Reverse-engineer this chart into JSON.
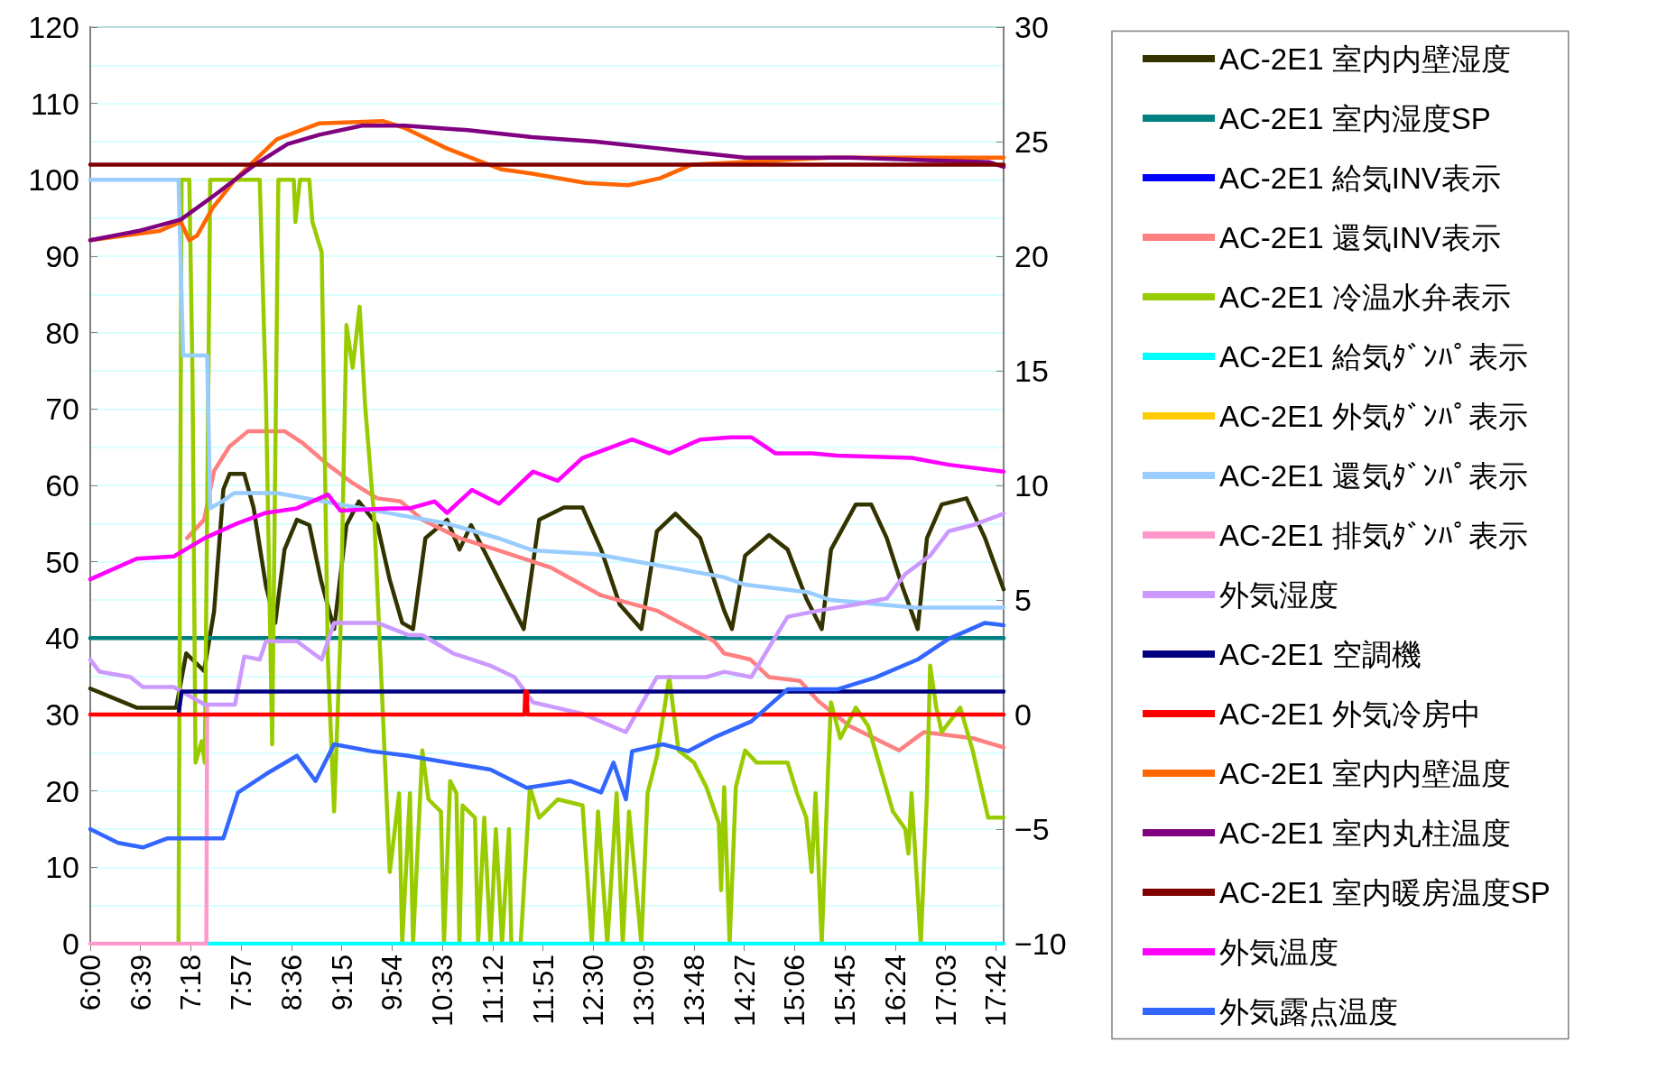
{
  "chart_data": {
    "type": "line",
    "legend": "right",
    "grid": "y",
    "marker": "none",
    "line_style": "solid",
    "xlim": [
      6,
      17.8
    ],
    "xticks": [
      {
        "value": 6,
        "label": "6:00"
      },
      {
        "value": 6.65,
        "label": "6:39"
      },
      {
        "value": 7.3,
        "label": "7:18"
      },
      {
        "value": 7.95,
        "label": "7:57"
      },
      {
        "value": 8.6,
        "label": "8:36"
      },
      {
        "value": 9.25,
        "label": "9:15"
      },
      {
        "value": 9.9,
        "label": "9:54"
      },
      {
        "value": 10.55,
        "label": "10:33"
      },
      {
        "value": 11.2,
        "label": "11:12"
      },
      {
        "value": 11.85,
        "label": "11:51"
      },
      {
        "value": 12.5,
        "label": "12:30"
      },
      {
        "value": 13.15,
        "label": "13:09"
      },
      {
        "value": 13.8,
        "label": "13:48"
      },
      {
        "value": 14.45,
        "label": "14:27"
      },
      {
        "value": 15.1,
        "label": "15:06"
      },
      {
        "value": 15.75,
        "label": "15:45"
      },
      {
        "value": 16.4,
        "label": "16:24"
      },
      {
        "value": 17.05,
        "label": "17:03"
      },
      {
        "value": 17.7,
        "label": "17:42"
      }
    ],
    "ylim": [
      0,
      120
    ],
    "yticks": [
      0,
      10,
      20,
      30,
      40,
      50,
      60,
      70,
      80,
      90,
      100,
      110,
      120
    ],
    "y2lim": [
      -10,
      30
    ],
    "y2ticks": [
      {
        "value": -10,
        "label": "−10"
      },
      {
        "value": -5,
        "label": "−5"
      },
      0,
      5,
      10,
      15,
      20,
      25,
      30
    ],
    "series": [
      {
        "name": "AC-2E1 室内内壁湿度",
        "color": "#333300",
        "x": [
          6.0,
          6.6,
          7.11,
          7.24,
          7.47,
          7.6,
          7.72,
          7.8,
          7.99,
          8.11,
          8.27,
          8.39,
          8.51,
          8.67,
          8.83,
          8.98,
          9.15,
          9.31,
          9.47,
          9.71,
          9.87,
          10.03,
          10.17,
          10.33,
          10.61,
          10.77,
          10.92,
          11.24,
          11.6,
          11.8,
          12.12,
          12.36,
          12.6,
          12.84,
          13.12,
          13.32,
          13.56,
          13.88,
          14.19,
          14.29,
          14.46,
          14.77,
          15.01,
          15.25,
          15.45,
          15.57,
          15.89,
          16.09,
          16.29,
          16.49,
          16.69,
          16.81,
          17.0,
          17.32,
          17.56,
          17.8
        ],
        "values": [
          33.4,
          30.9,
          30.9,
          38,
          35.7,
          43.5,
          59.5,
          61.5,
          61.5,
          57.1,
          46.8,
          42,
          51.6,
          55.5,
          54.8,
          47.6,
          41.2,
          54.8,
          57.9,
          54.8,
          47.6,
          42,
          41.2,
          53.1,
          55.5,
          51.6,
          54.8,
          48.4,
          41.2,
          55.5,
          57.1,
          57.1,
          51.6,
          44.4,
          41.2,
          54,
          56.3,
          53.1,
          43.6,
          41.2,
          50.8,
          53.5,
          51.6,
          45.2,
          41.2,
          51.6,
          57.5,
          57.5,
          53.1,
          46.8,
          41.2,
          53.1,
          57.5,
          58.3,
          53.1,
          46.4
        ]
      },
      {
        "name": "AC-2E1 室内湿度SP",
        "color": "#008080",
        "x": [
          6,
          17.8
        ],
        "values": [
          40,
          40
        ]
      },
      {
        "name": "AC-2E1 給気INV表示",
        "color": "#0000ff"
      },
      {
        "name": "AC-2E1 還気INV表示",
        "color": "#ff8080",
        "x": [
          7.25,
          7.47,
          7.6,
          7.8,
          8.04,
          8.51,
          8.75,
          9.07,
          9.39,
          9.71,
          10.01,
          10.29,
          10.77,
          11.24,
          11.96,
          12.6,
          13.32,
          14.06,
          14.19,
          14.53,
          14.77,
          15.17,
          15.41,
          15.81,
          16.45,
          16.77,
          17.4,
          17.8
        ],
        "values": [
          53.1,
          55.5,
          61.9,
          65.1,
          67.1,
          67.1,
          65.5,
          62.7,
          60.3,
          58.3,
          57.9,
          55.5,
          53.1,
          51.6,
          49.2,
          45.6,
          43.6,
          39.6,
          38.0,
          37.2,
          34.9,
          34.4,
          31.7,
          28.5,
          25.3,
          27.7,
          26.9,
          25.7
        ]
      },
      {
        "name": "AC-2E1 冷温水弁表示",
        "color": "#99cc00",
        "x": [
          7.14,
          7.18,
          7.28,
          7.32,
          7.36,
          7.44,
          7.48,
          7.55,
          8.19,
          8.27,
          8.35,
          8.43,
          8.63,
          8.65,
          8.71,
          8.83,
          8.87,
          8.99,
          9.07,
          9.15,
          9.23,
          9.31,
          9.39,
          9.48,
          9.55,
          9.67,
          9.87,
          9.99,
          10.03,
          10.13,
          10.17,
          10.29,
          10.37,
          10.53,
          10.57,
          10.65,
          10.73,
          10.77,
          10.81,
          10.97,
          11.01,
          11.09,
          11.17,
          11.24,
          11.32,
          11.41,
          11.44,
          11.56,
          11.68,
          11.8,
          12.04,
          12.36,
          12.48,
          12.56,
          12.68,
          12.8,
          12.88,
          12.96,
          13.12,
          13.2,
          13.32,
          13.48,
          13.6,
          13.8,
          13.96,
          14.12,
          14.15,
          14.19,
          14.26,
          14.34,
          14.46,
          14.61,
          15.01,
          15.13,
          15.25,
          15.32,
          15.37,
          15.45,
          15.53,
          15.57,
          15.69,
          15.89,
          16.05,
          16.21,
          16.37,
          16.53,
          16.57,
          16.61,
          16.73,
          16.81,
          16.85,
          16.93,
          17.0,
          17.24,
          17.4,
          17.6,
          17.8
        ],
        "values": [
          0,
          100,
          100,
          75,
          23.7,
          26.5,
          23.7,
          100,
          100,
          71.4,
          26.1,
          100,
          100,
          94.5,
          100,
          100,
          94.5,
          90.5,
          37.2,
          17.3,
          39.6,
          81,
          75.4,
          83.4,
          70.6,
          55.5,
          9.4,
          19.7,
          0,
          19.7,
          0,
          25.3,
          18.9,
          17.3,
          0,
          21.3,
          19.7,
          0,
          18.1,
          16.5,
          0,
          16.5,
          0,
          15,
          0,
          15,
          0,
          0,
          20.5,
          16.5,
          18.9,
          18.1,
          0,
          17.3,
          0,
          19.7,
          0,
          17.3,
          0,
          19.7,
          24.5,
          34.9,
          25.3,
          23.7,
          20.5,
          15.8,
          7,
          20.5,
          0,
          20.5,
          25.3,
          23.7,
          23.7,
          19.7,
          16.5,
          9.4,
          19.7,
          0,
          22.1,
          31.6,
          26.9,
          30.9,
          28.5,
          22.9,
          17.3,
          15,
          11.8,
          19.7,
          0,
          19.7,
          36.4,
          30.9,
          27.7,
          30.9,
          25.3,
          16.5,
          16.5
        ]
      },
      {
        "name": "AC-2E1 給気ﾀﾞﾝﾊﾟ表示",
        "color": "#00ffff",
        "x": [
          7.51,
          17.8
        ],
        "values": [
          0,
          0
        ]
      },
      {
        "name": "AC-2E1 外気ﾀﾞﾝﾊﾟ表示",
        "color": "#ffcc00"
      },
      {
        "name": "AC-2E1 還気ﾀﾞﾝﾊﾟ表示",
        "color": "#99ccff",
        "x": [
          6,
          7.14,
          7.2,
          7.51,
          7.55,
          7.72,
          7.86,
          8.41,
          8.96,
          9.51,
          10.06,
          10.61,
          11.3,
          11.71,
          12.53,
          13.08,
          13.63,
          14.18,
          14.46,
          15.28,
          15.56,
          16.66,
          17.8
        ],
        "values": [
          100,
          100,
          77,
          77,
          57,
          58,
          59,
          59,
          58,
          57,
          56,
          55,
          53,
          51.5,
          51,
          50,
          49,
          48,
          47,
          46,
          45,
          44,
          44
        ]
      },
      {
        "name": "AC-2E1 排気ﾀﾞﾝﾊﾟ表示",
        "color": "#ff99cc",
        "x": [
          6,
          7.5,
          7.51
        ],
        "values": [
          0,
          0,
          31
        ]
      },
      {
        "name": "外気湿度",
        "color": "#cc99ff",
        "x": [
          6.0,
          6.12,
          6.52,
          6.68,
          7.08,
          7.48,
          7.87,
          7.99,
          8.19,
          8.27,
          8.67,
          8.99,
          9.15,
          9.71,
          10.11,
          10.29,
          10.69,
          11.17,
          11.48,
          11.72,
          12.36,
          12.92,
          13.32,
          13.96,
          14.19,
          14.54,
          14.77,
          15.01,
          15.41,
          15.89,
          16.29,
          16.53,
          16.85,
          17.09,
          17.4,
          17.8
        ],
        "values": [
          37.2,
          35.6,
          34.9,
          33.6,
          33.6,
          31.3,
          31.3,
          37.6,
          37.2,
          39.6,
          39.6,
          37.2,
          42,
          42,
          40.4,
          40.4,
          38.0,
          36.4,
          34.9,
          31.6,
          30.1,
          27.7,
          34.9,
          34.9,
          35.6,
          34.9,
          38.8,
          42.8,
          43.6,
          44.4,
          45.2,
          48.4,
          50.8,
          54,
          54.8,
          56.3
        ]
      },
      {
        "name": "AC-2E1 空調機",
        "color": "#000080",
        "axis": "y2",
        "x": [
          7.14,
          7.18,
          17.8
        ],
        "values": [
          0,
          1,
          1
        ]
      },
      {
        "name": "AC-2E1 外気冷房中",
        "color": "#ff0000",
        "axis": "y2",
        "x": [
          6,
          11.61,
          11.62,
          11.64,
          11.65,
          17.8
        ],
        "values": [
          0,
          0,
          1,
          1,
          0,
          0
        ]
      },
      {
        "name": "AC-2E1 室内内壁温度",
        "color": "#ff6600",
        "axis": "y2",
        "x": [
          6,
          6.89,
          7.17,
          7.28,
          7.38,
          7.58,
          7.86,
          8.13,
          8.41,
          8.96,
          9.78,
          10.06,
          10.61,
          11.3,
          11.71,
          12.4,
          12.95,
          13.36,
          13.77,
          15.56,
          17.21,
          17.8
        ],
        "values": [
          20.7,
          21.1,
          21.5,
          20.7,
          20.9,
          22.1,
          23.3,
          24.2,
          25.1,
          25.8,
          25.9,
          25.6,
          24.7,
          23.8,
          23.6,
          23.2,
          23.1,
          23.4,
          24.0,
          24.3,
          24.3,
          24.3
        ]
      },
      {
        "name": "AC-2E1 室内丸柱温度",
        "color": "#800080",
        "axis": "y2",
        "x": [
          6,
          6.62,
          7.17,
          7.58,
          8.13,
          8.55,
          8.96,
          9.51,
          10.06,
          10.88,
          11.71,
          12.53,
          13.36,
          14.46,
          15.83,
          17.62,
          17.8
        ],
        "values": [
          20.7,
          21.1,
          21.6,
          22.6,
          24.0,
          24.9,
          25.3,
          25.7,
          25.7,
          25.5,
          25.2,
          25.0,
          24.7,
          24.3,
          24.3,
          24.1,
          23.9
        ]
      },
      {
        "name": "AC-2E1 室内暖房温度SP",
        "color": "#800000",
        "axis": "y2",
        "x": [
          6,
          17.8
        ],
        "values": [
          24,
          24
        ]
      },
      {
        "name": "外気温度",
        "color": "#ff00ff",
        "axis": "y2",
        "x": [
          6.0,
          6.6,
          7.08,
          7.48,
          7.87,
          8.27,
          8.67,
          9.07,
          9.23,
          9.87,
          10.13,
          10.45,
          10.61,
          10.93,
          11.28,
          11.72,
          12.04,
          12.36,
          13.0,
          13.48,
          13.88,
          14.27,
          14.54,
          14.85,
          15.33,
          15.65,
          16.61,
          17.09,
          17.8
        ],
        "values": [
          5.9,
          6.8,
          6.9,
          7.7,
          8.3,
          8.8,
          9.0,
          9.6,
          8.9,
          9.0,
          9.0,
          9.3,
          8.8,
          9.8,
          9.2,
          10.6,
          10.2,
          11.2,
          12.0,
          11.4,
          12.0,
          12.1,
          12.1,
          11.4,
          11.4,
          11.3,
          11.2,
          10.9,
          10.6
        ]
      },
      {
        "name": "外気露点温度",
        "color": "#3366ff",
        "axis": "y2",
        "x": [
          6.0,
          6.36,
          6.68,
          7.0,
          7.72,
          7.91,
          8.27,
          8.67,
          8.91,
          9.15,
          9.63,
          10.11,
          10.45,
          11.17,
          11.64,
          12.2,
          12.6,
          12.76,
          12.92,
          13.0,
          13.4,
          13.72,
          14.06,
          14.54,
          15.01,
          15.65,
          16.13,
          16.69,
          17.09,
          17.56,
          17.8
        ],
        "values": [
          -5.0,
          -5.6,
          -5.8,
          -5.4,
          -5.4,
          -3.4,
          -2.6,
          -1.8,
          -2.9,
          -1.3,
          -1.6,
          -1.8,
          -2.0,
          -2.4,
          -3.2,
          -2.9,
          -3.4,
          -2.1,
          -3.7,
          -1.6,
          -1.3,
          -1.6,
          -1.0,
          -0.3,
          1.1,
          1.1,
          1.6,
          2.4,
          3.3,
          4.0,
          3.9
        ]
      }
    ]
  }
}
